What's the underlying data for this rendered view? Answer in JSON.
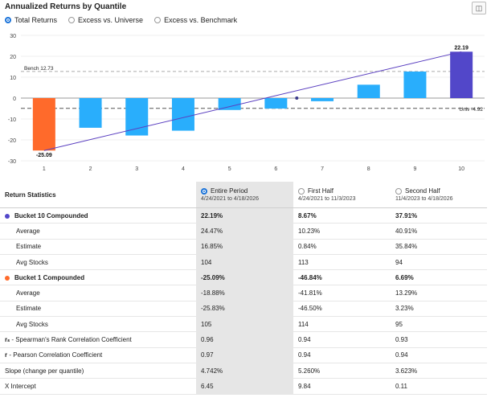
{
  "header": {
    "title": "Annualized Returns by Quantile",
    "tool_icon": "export-icon"
  },
  "radios": [
    {
      "label": "Total Returns",
      "selected": true
    },
    {
      "label": "Excess vs. Universe",
      "selected": false
    },
    {
      "label": "Excess vs. Benchmark",
      "selected": false
    }
  ],
  "chart_data": {
    "type": "bar",
    "categories": [
      "1",
      "2",
      "3",
      "4",
      "5",
      "6",
      "7",
      "8",
      "9",
      "10"
    ],
    "values": [
      -25.09,
      -14.2,
      -17.9,
      -15.6,
      -5.7,
      -5.0,
      -1.5,
      6.4,
      12.7,
      22.19
    ],
    "data_labels": {
      "0": "-25.09",
      "9": "22.19"
    },
    "ylim": [
      -30,
      30
    ],
    "yticks": [
      "30",
      "20",
      "10",
      "0",
      "-10",
      "-20",
      "-30"
    ],
    "reference_lines": [
      {
        "label": "Bench 12.73",
        "value": 12.73
      },
      {
        "label": "Univ -4.92",
        "value": -4.92
      }
    ],
    "trendline": {
      "x1": 1,
      "y1": -25.09,
      "x2": 10,
      "y2": 22.19
    },
    "colors": {
      "lowest": "#ff6a2b",
      "highest": "#5247c9",
      "middle": "#29aefc",
      "trend": "#5a3fc0"
    }
  },
  "table": {
    "title": "Return Statistics",
    "columns": [
      {
        "label": "Entire Period",
        "sub": "4/24/2021 to 4/18/2026",
        "selected": true
      },
      {
        "label": "First Half",
        "sub": "4/24/2021 to 11/3/2023",
        "selected": false
      },
      {
        "label": "Second Half",
        "sub": "11/4/2023 to 4/18/2026",
        "selected": false
      }
    ],
    "rows": [
      {
        "label": "Bucket 10 Compounded",
        "bold": true,
        "dot": "#5247c9",
        "values": [
          "22.19%",
          "8.67%",
          "37.91%"
        ]
      },
      {
        "label": "Average",
        "indent": true,
        "values": [
          "24.47%",
          "10.23%",
          "40.91%"
        ]
      },
      {
        "label": "Estimate",
        "indent": true,
        "values": [
          "16.85%",
          "0.84%",
          "35.84%"
        ]
      },
      {
        "label": "Avg Stocks",
        "indent": true,
        "values": [
          "104",
          "113",
          "94"
        ]
      },
      {
        "label": "Bucket 1 Compounded",
        "bold": true,
        "dot": "#ff6a2b",
        "values": [
          "-25.09%",
          "-46.84%",
          "6.69%"
        ]
      },
      {
        "label": "Average",
        "indent": true,
        "values": [
          "-18.88%",
          "-41.81%",
          "13.29%"
        ]
      },
      {
        "label": "Estimate",
        "indent": true,
        "values": [
          "-25.83%",
          "-46.50%",
          "3.23%"
        ]
      },
      {
        "label": "Avg Stocks",
        "indent": true,
        "values": [
          "105",
          "114",
          "95"
        ]
      },
      {
        "label_prefix": "rₛ",
        "label": " - Spearman's Rank Correlation Coefficient",
        "values": [
          "0.96",
          "0.94",
          "0.93"
        ]
      },
      {
        "label_prefix": "r",
        "label": " - Pearson Correlation Coefficient",
        "values": [
          "0.97",
          "0.94",
          "0.94"
        ]
      },
      {
        "label": "Slope (change per quantile)",
        "values": [
          "4.742%",
          "5.260%",
          "3.623%"
        ]
      },
      {
        "label": "X Intercept",
        "values": [
          "6.45",
          "9.84",
          "0.11"
        ]
      }
    ]
  }
}
